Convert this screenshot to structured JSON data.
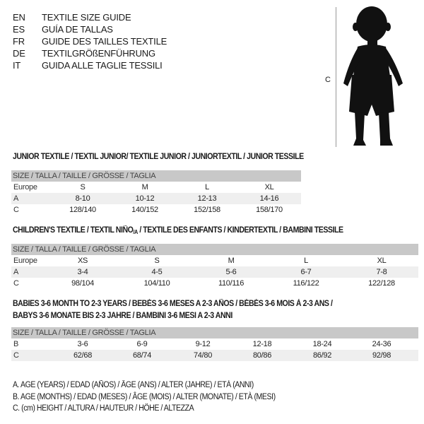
{
  "header": [
    {
      "code": "EN",
      "title": "TEXTILE SIZE GUIDE"
    },
    {
      "code": "ES",
      "title": "GUÍA DE TALLAS"
    },
    {
      "code": "FR",
      "title": "GUIDE DES TAILLES TEXTILE"
    },
    {
      "code": "DE",
      "title": "TEXTILGRÖßENFÜHRUNG"
    },
    {
      "code": "IT",
      "title": "GUIDA ALLE TAGLIE TESSILI"
    }
  ],
  "figure": {
    "label": "C",
    "icon": "child-silhouette"
  },
  "colors": {
    "header_row": "#c8c8c8",
    "shaded_row": "#efefef"
  },
  "size_header": "SIZE / TALLA / TAILLE / GRÖSSE / TAGLIA",
  "junior": {
    "title": "JUNIOR TEXTILE / TEXTIL JUNIOR/ TEXTILE JUNIOR / JUNIORTEXTIL / JUNIOR TESSILE",
    "rows": [
      {
        "label": "Europe",
        "values": [
          "S",
          "M",
          "L",
          "XL"
        ]
      },
      {
        "label": "A",
        "values": [
          "8-10",
          "10-12",
          "12-13",
          "14-16"
        ]
      },
      {
        "label": "C",
        "values": [
          "128/140",
          "140/152",
          "152/158",
          "158/170"
        ]
      }
    ]
  },
  "children": {
    "title_pre": "CHILDREN'S TEXTILE / TEXTIL NIÑO",
    "title_sub": "/A",
    "title_post": " / TEXTILE DES ENFANTS / KINDERTEXTIL / BAMBINI TESSILE",
    "rows": [
      {
        "label": "Europe",
        "values": [
          "XS",
          "S",
          "M",
          "L",
          "XL"
        ]
      },
      {
        "label": "A",
        "values": [
          "3-4",
          "4-5",
          "5-6",
          "6-7",
          "7-8"
        ]
      },
      {
        "label": "C",
        "values": [
          "98/104",
          "104/110",
          "110/116",
          "116/122",
          "122/128"
        ]
      }
    ]
  },
  "babies": {
    "title_line1": "BABIES 3-6 MONTH TO 2-3 YEARS / BEBÉS 3-6 MESES A 2-3 AÑOS / BÉBÉS 3-6 MOIS À 2-3 ANS /",
    "title_line2": "BABYS 3-6 MONATE BIS 2-3 JAHRE / BAMBINI 3-6 MESI A 2-3 ANNI",
    "rows": [
      {
        "label": "B",
        "values": [
          "3-6",
          "6-9",
          "9-12",
          "12-18",
          "18-24",
          "24-36"
        ]
      },
      {
        "label": "C",
        "values": [
          "62/68",
          "68/74",
          "74/80",
          "80/86",
          "86/92",
          "92/98"
        ]
      }
    ]
  },
  "legend": [
    "A. AGE (YEARS) / EDAD (AÑOS) / ÂGE (ANS) / ALTER (JAHRE) / ETÀ (ANNI)",
    "B. AGE (MONTHS) / EDAD (MESES) / ÂGE (MOIS) / ALTER (MONATE) / ETÀ (MESI)",
    "C. (cm) HEIGHT / ALTURA / HAUTEUR / HÖHE / ALTEZZA"
  ]
}
